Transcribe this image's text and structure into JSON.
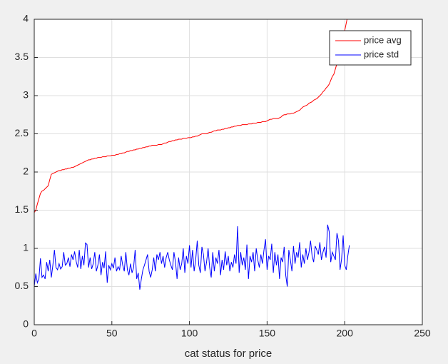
{
  "chart_data": {
    "type": "line",
    "xlabel": "cat status for price",
    "x": [
      0,
      1,
      2,
      3,
      4,
      5,
      6,
      7,
      8,
      9,
      10,
      11,
      12,
      13,
      14,
      15,
      16,
      17,
      18,
      19,
      20,
      21,
      22,
      23,
      24,
      25,
      26,
      27,
      28,
      29,
      30,
      31,
      32,
      33,
      34,
      35,
      36,
      37,
      38,
      39,
      40,
      41,
      42,
      43,
      44,
      45,
      46,
      47,
      48,
      49,
      50,
      51,
      52,
      53,
      54,
      55,
      56,
      57,
      58,
      59,
      60,
      61,
      62,
      63,
      64,
      65,
      66,
      67,
      68,
      69,
      70,
      71,
      72,
      73,
      74,
      75,
      76,
      77,
      78,
      79,
      80,
      81,
      82,
      83,
      84,
      85,
      86,
      87,
      88,
      89,
      90,
      91,
      92,
      93,
      94,
      95,
      96,
      97,
      98,
      99,
      100,
      101,
      102,
      103,
      104,
      105,
      106,
      107,
      108,
      109,
      110,
      111,
      112,
      113,
      114,
      115,
      116,
      117,
      118,
      119,
      120,
      121,
      122,
      123,
      124,
      125,
      126,
      127,
      128,
      129,
      130,
      131,
      132,
      133,
      134,
      135,
      136,
      137,
      138,
      139,
      140,
      141,
      142,
      143,
      144,
      145,
      146,
      147,
      148,
      149,
      150,
      151,
      152,
      153,
      154,
      155,
      156,
      157,
      158,
      159,
      160,
      161,
      162,
      163,
      164,
      165,
      166,
      167,
      168,
      169,
      170,
      171,
      172,
      173,
      174,
      175,
      176,
      177,
      178,
      179,
      180,
      181,
      182,
      183,
      184,
      185,
      186,
      187,
      188,
      189,
      190,
      191,
      192,
      193,
      194,
      195,
      196,
      197,
      198,
      199,
      200,
      201,
      202,
      203
    ],
    "series": [
      {
        "name": "price avg",
        "color": "#ff0000",
        "values": [
          1.47,
          1.5,
          1.58,
          1.65,
          1.72,
          1.75,
          1.76,
          1.78,
          1.8,
          1.82,
          1.9,
          1.97,
          1.98,
          1.99,
          2.0,
          2.01,
          2.02,
          2.02,
          2.03,
          2.03,
          2.04,
          2.04,
          2.05,
          2.05,
          2.06,
          2.06,
          2.07,
          2.08,
          2.09,
          2.1,
          2.11,
          2.12,
          2.13,
          2.14,
          2.15,
          2.16,
          2.16,
          2.17,
          2.17,
          2.18,
          2.18,
          2.19,
          2.19,
          2.19,
          2.2,
          2.2,
          2.2,
          2.21,
          2.21,
          2.21,
          2.22,
          2.22,
          2.22,
          2.23,
          2.23,
          2.24,
          2.24,
          2.25,
          2.25,
          2.26,
          2.27,
          2.27,
          2.28,
          2.28,
          2.29,
          2.29,
          2.3,
          2.3,
          2.31,
          2.31,
          2.32,
          2.32,
          2.33,
          2.33,
          2.34,
          2.34,
          2.35,
          2.35,
          2.35,
          2.35,
          2.36,
          2.36,
          2.36,
          2.37,
          2.38,
          2.38,
          2.39,
          2.4,
          2.4,
          2.41,
          2.41,
          2.42,
          2.42,
          2.43,
          2.43,
          2.43,
          2.44,
          2.44,
          2.44,
          2.45,
          2.45,
          2.45,
          2.46,
          2.46,
          2.47,
          2.47,
          2.48,
          2.49,
          2.5,
          2.5,
          2.5,
          2.5,
          2.51,
          2.52,
          2.52,
          2.53,
          2.54,
          2.54,
          2.55,
          2.55,
          2.55,
          2.56,
          2.56,
          2.57,
          2.57,
          2.58,
          2.58,
          2.59,
          2.59,
          2.6,
          2.6,
          2.61,
          2.61,
          2.61,
          2.62,
          2.62,
          2.62,
          2.62,
          2.63,
          2.63,
          2.63,
          2.64,
          2.64,
          2.64,
          2.65,
          2.65,
          2.65,
          2.66,
          2.66,
          2.66,
          2.67,
          2.68,
          2.69,
          2.69,
          2.7,
          2.7,
          2.7,
          2.7,
          2.71,
          2.72,
          2.74,
          2.75,
          2.75,
          2.76,
          2.76,
          2.76,
          2.77,
          2.77,
          2.78,
          2.79,
          2.8,
          2.81,
          2.83,
          2.85,
          2.86,
          2.87,
          2.88,
          2.9,
          2.91,
          2.92,
          2.94,
          2.95,
          2.96,
          2.98,
          3.0,
          3.02,
          3.05,
          3.07,
          3.1,
          3.12,
          3.15,
          3.2,
          3.25,
          3.28,
          3.35,
          3.42,
          3.5,
          3.58,
          3.65,
          3.75,
          3.85,
          3.95,
          4.05,
          4.15
        ]
      },
      {
        "name": "price std",
        "color": "#0000ff",
        "values": [
          0.5,
          0.67,
          0.55,
          0.6,
          0.87,
          0.62,
          0.65,
          0.6,
          0.82,
          0.7,
          0.85,
          0.62,
          0.78,
          0.98,
          0.75,
          0.72,
          0.8,
          0.73,
          0.76,
          0.95,
          0.78,
          0.8,
          0.88,
          0.76,
          0.92,
          0.85,
          0.96,
          0.83,
          0.75,
          0.98,
          0.73,
          0.9,
          0.78,
          1.07,
          1.05,
          0.75,
          0.88,
          0.73,
          0.8,
          0.95,
          0.7,
          0.78,
          0.92,
          0.65,
          0.82,
          0.74,
          0.96,
          0.55,
          0.78,
          0.72,
          0.8,
          0.74,
          0.88,
          0.7,
          0.76,
          0.72,
          0.9,
          0.78,
          0.7,
          0.95,
          0.72,
          0.65,
          0.8,
          0.68,
          0.75,
          0.98,
          0.6,
          0.68,
          0.46,
          0.6,
          0.72,
          0.78,
          0.85,
          0.92,
          0.7,
          0.62,
          0.72,
          0.88,
          0.7,
          0.92,
          0.85,
          0.95,
          0.8,
          0.9,
          0.75,
          0.88,
          0.95,
          0.85,
          0.78,
          0.72,
          0.95,
          0.82,
          0.6,
          0.88,
          0.72,
          0.8,
          1.0,
          0.68,
          0.9,
          0.8,
          1.04,
          0.75,
          0.98,
          0.7,
          0.85,
          1.1,
          0.78,
          0.68,
          1.02,
          0.92,
          0.7,
          0.82,
          1.0,
          0.75,
          0.62,
          0.95,
          0.7,
          0.88,
          0.8,
          0.98,
          0.65,
          0.85,
          0.72,
          0.96,
          0.78,
          0.9,
          0.7,
          0.82,
          0.75,
          0.92,
          0.8,
          1.29,
          0.68,
          0.95,
          0.78,
          0.88,
          0.72,
          1.05,
          0.6,
          0.9,
          0.82,
          0.95,
          0.7,
          1.0,
          0.85,
          0.75,
          0.92,
          0.8,
          0.98,
          1.12,
          0.72,
          0.9,
          0.85,
          1.06,
          0.68,
          0.95,
          0.78,
          0.92,
          0.6,
          0.88,
          0.82,
          1.02,
          0.65,
          0.5,
          0.98,
          0.85,
          0.7,
          1.03,
          0.8,
          0.95,
          0.88,
          1.08,
          0.75,
          0.92,
          0.8,
          1.0,
          0.85,
          0.95,
          1.1,
          0.9,
          0.82,
          1.03,
          0.98,
          0.92,
          1.08,
          0.85,
          0.95,
          1.02,
          0.88,
          1.31,
          1.22,
          0.82,
          0.95,
          0.9,
          0.85,
          1.2,
          1.1,
          0.72,
          0.86,
          1.17,
          0.78,
          0.72,
          0.9,
          1.04
        ]
      }
    ],
    "xlim": [
      0,
      250
    ],
    "xticks": [
      0,
      50,
      100,
      150,
      200,
      250
    ],
    "ylim": [
      0,
      4
    ],
    "yticks": [
      0,
      0.5,
      1,
      1.5,
      2,
      2.5,
      3,
      3.5,
      4
    ],
    "grid": true,
    "legend": "northeast"
  }
}
